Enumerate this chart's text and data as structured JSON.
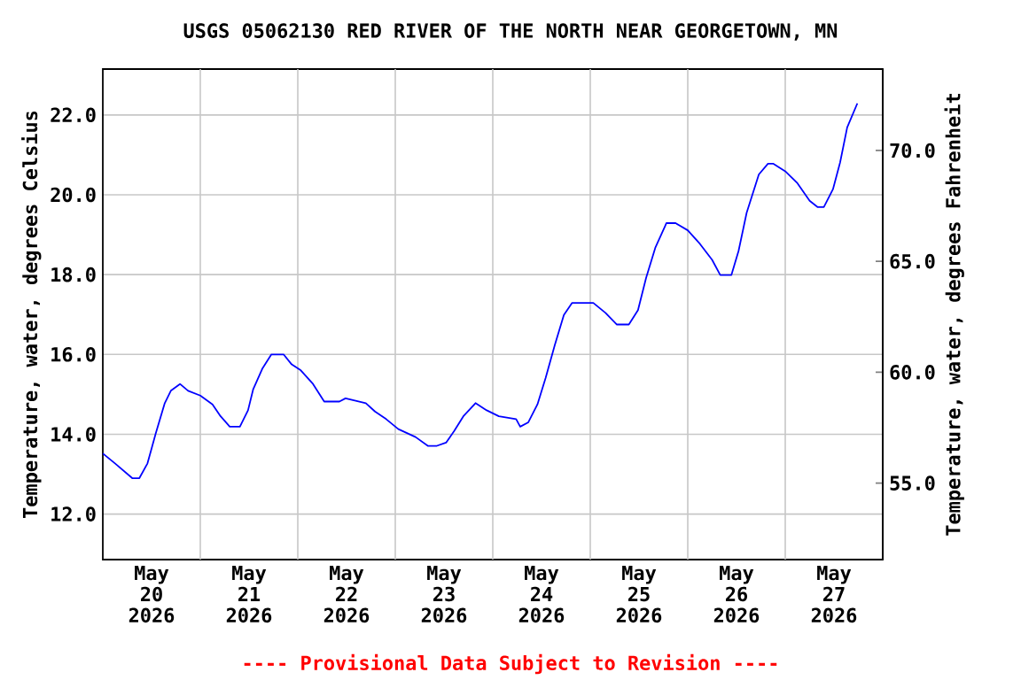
{
  "chart_data": {
    "type": "line",
    "title": "USGS 05062130 RED RIVER OF THE NORTH NEAR GEORGETOWN, MN",
    "ylabel": "Temperature, water, degrees Celsius",
    "y2label": "Temperature, water, degrees Fahrenheit",
    "annotations": [
      "---- Provisional Data Subject to Revision ----"
    ],
    "x": [
      "2026-05-20T00:00",
      "2026-05-20T03:00",
      "2026-05-20T07:15",
      "2026-05-20T09:00",
      "2026-05-20T11:00",
      "2026-05-20T13:00",
      "2026-05-20T15:15",
      "2026-05-20T16:45",
      "2026-05-20T19:00",
      "2026-05-20T21:00",
      "2026-05-21T00:00",
      "2026-05-21T03:00",
      "2026-05-21T05:00",
      "2026-05-21T07:15",
      "2026-05-21T09:45",
      "2026-05-21T11:45",
      "2026-05-21T13:00",
      "2026-05-21T15:15",
      "2026-05-21T17:30",
      "2026-05-21T20:30",
      "2026-05-21T22:30",
      "2026-05-22T00:45",
      "2026-05-22T03:45",
      "2026-05-22T06:30",
      "2026-05-22T10:15",
      "2026-05-22T11:45",
      "2026-05-22T16:45",
      "2026-05-22T19:00",
      "2026-05-22T21:45",
      "2026-05-23T00:45",
      "2026-05-23T05:00",
      "2026-05-23T08:00",
      "2026-05-23T10:15",
      "2026-05-23T12:30",
      "2026-05-23T14:30",
      "2026-05-23T16:45",
      "2026-05-23T19:45",
      "2026-05-23T22:30",
      "2026-05-24T01:30",
      "2026-05-24T05:45",
      "2026-05-24T06:45",
      "2026-05-24T08:45",
      "2026-05-24T11:00",
      "2026-05-24T13:00",
      "2026-05-24T15:15",
      "2026-05-24T17:30",
      "2026-05-24T19:30",
      "2026-05-25T00:45",
      "2026-05-25T03:45",
      "2026-05-25T06:30",
      "2026-05-25T09:30",
      "2026-05-25T11:45",
      "2026-05-25T13:45",
      "2026-05-25T16:00",
      "2026-05-25T18:45",
      "2026-05-25T21:00",
      "2026-05-26T00:00",
      "2026-05-26T03:00",
      "2026-05-26T06:00",
      "2026-05-26T08:00",
      "2026-05-26T10:45",
      "2026-05-26T12:30",
      "2026-05-26T14:30",
      "2026-05-26T17:30",
      "2026-05-26T19:45",
      "2026-05-26T21:00",
      "2026-05-27T00:00",
      "2026-05-27T03:00",
      "2026-05-27T06:00",
      "2026-05-27T08:00",
      "2026-05-27T09:30",
      "2026-05-27T11:45",
      "2026-05-27T13:30",
      "2026-05-27T15:15",
      "2026-05-27T17:45"
    ],
    "series": [
      {
        "color": "#0000ff",
        "values": [
          13.52,
          13.27,
          12.9,
          12.9,
          13.27,
          14.01,
          14.78,
          15.09,
          15.26,
          15.09,
          14.97,
          14.75,
          14.45,
          14.19,
          14.19,
          14.6,
          15.12,
          15.64,
          16.0,
          16.0,
          15.75,
          15.6,
          15.26,
          14.82,
          14.82,
          14.9,
          14.78,
          14.57,
          14.38,
          14.13,
          13.93,
          13.71,
          13.71,
          13.79,
          14.08,
          14.45,
          14.78,
          14.6,
          14.45,
          14.38,
          14.19,
          14.3,
          14.75,
          15.41,
          16.23,
          16.99,
          17.29,
          17.29,
          17.04,
          16.75,
          16.75,
          17.11,
          17.92,
          18.67,
          19.29,
          19.29,
          19.11,
          18.77,
          18.37,
          17.99,
          17.99,
          18.59,
          19.55,
          20.51,
          20.78,
          20.78,
          20.59,
          20.29,
          19.85,
          19.69,
          19.69,
          20.14,
          20.81,
          21.69,
          22.29
        ]
      }
    ],
    "xlim": [
      "2026-05-20T00:00",
      "2026-05-28T00:00"
    ],
    "xticks": [
      {
        "value": "2026-05-20T12:00",
        "label": "May 20 2026"
      },
      {
        "value": "2026-05-21T12:00",
        "label": "May 21 2026"
      },
      {
        "value": "2026-05-22T12:00",
        "label": "May 22 2026"
      },
      {
        "value": "2026-05-23T12:00",
        "label": "May 23 2026"
      },
      {
        "value": "2026-05-24T12:00",
        "label": "May 24 2026"
      },
      {
        "value": "2026-05-25T12:00",
        "label": "May 25 2026"
      },
      {
        "value": "2026-05-26T12:00",
        "label": "May 26 2026"
      },
      {
        "value": "2026-05-27T12:00",
        "label": "May 27 2026"
      },
      {
        "value": "2026-05-21T00:00",
        "label": null
      },
      {
        "value": "2026-05-22T00:00",
        "label": null
      },
      {
        "value": "2026-05-23T00:00",
        "label": null
      },
      {
        "value": "2026-05-24T00:00",
        "label": null
      },
      {
        "value": "2026-05-25T00:00",
        "label": null
      },
      {
        "value": "2026-05-26T00:00",
        "label": null
      },
      {
        "value": "2026-05-27T00:00",
        "label": null
      }
    ],
    "ylim": [
      10.86,
      23.15
    ],
    "yticks": [
      {
        "value": 12,
        "label": "12.0"
      },
      {
        "value": 14,
        "label": "14.0"
      },
      {
        "value": 16,
        "label": "16.0"
      },
      {
        "value": 18,
        "label": "18.0"
      },
      {
        "value": 20,
        "label": "20.0"
      },
      {
        "value": 22,
        "label": "22.0"
      }
    ],
    "y2lim": [
      51.55,
      73.67
    ],
    "y2ticks": [
      {
        "value": 55,
        "label": "55.0"
      },
      {
        "value": 60,
        "label": "60.0"
      },
      {
        "value": 65,
        "label": "65.0"
      },
      {
        "value": 70,
        "label": "70.0"
      }
    ],
    "grid": true,
    "marker": "none",
    "line_style": "solid"
  }
}
